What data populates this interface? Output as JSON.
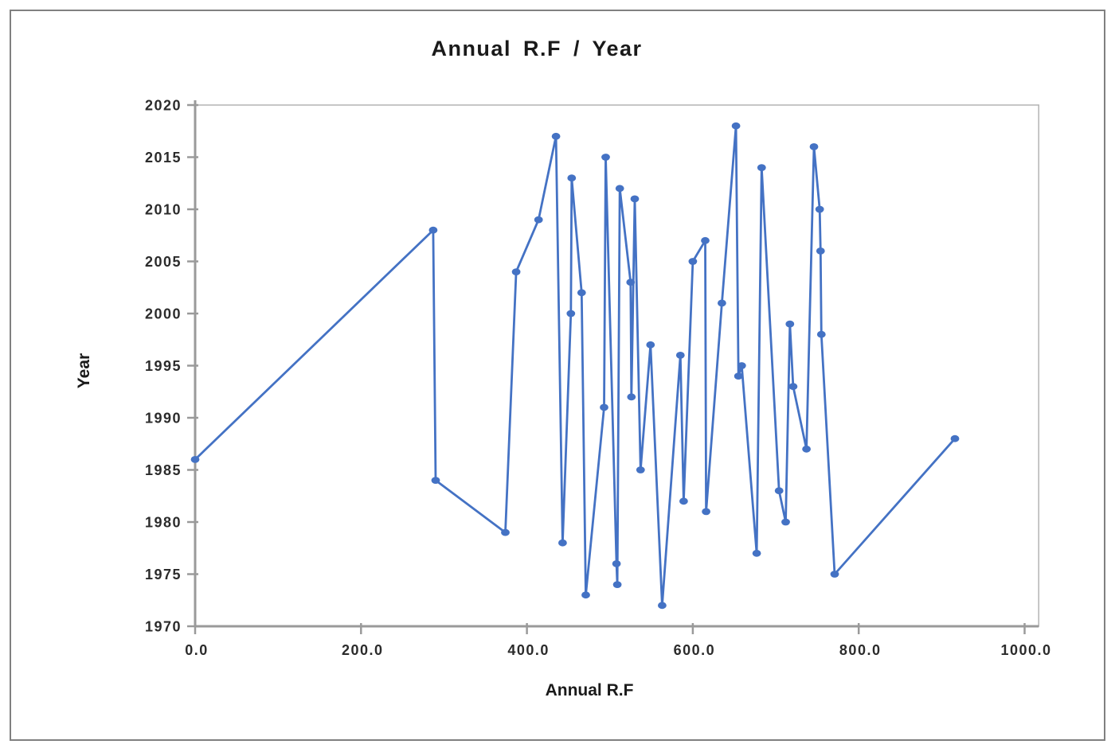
{
  "chart_data": {
    "type": "line",
    "title": "Annual R.F / Year",
    "xlabel": "Annual R.F",
    "ylabel": "Year",
    "x_tick_labels": [
      "0.0",
      "200.0",
      "400.0",
      "600.0",
      "800.0",
      "1000.0"
    ],
    "x_tick_values": [
      0,
      200,
      400,
      600,
      800,
      1000
    ],
    "y_tick_labels": [
      "1970",
      "1975",
      "1980",
      "1985",
      "1990",
      "1995",
      "2000",
      "2005",
      "2010",
      "2015",
      "2020"
    ],
    "y_tick_values": [
      1970,
      1975,
      1980,
      1985,
      1990,
      1995,
      2000,
      2005,
      2010,
      2015,
      2020
    ],
    "xlim": [
      0,
      1017
    ],
    "ylim": [
      1970,
      2020
    ],
    "grid": false,
    "legend": "none",
    "marker": "circle",
    "colors": {
      "series": "#4472C4",
      "axis": "#9a9a9a",
      "figure_border": "#808080",
      "text": "#1a1a1a"
    },
    "series": [
      {
        "name": "Annual R.F",
        "points": [
          [
            0,
            1986
          ],
          [
            287,
            2008
          ],
          [
            290,
            1984
          ],
          [
            374,
            1979
          ],
          [
            387,
            2004
          ],
          [
            414,
            2009
          ],
          [
            435,
            2017
          ],
          [
            443,
            1978
          ],
          [
            453,
            2000
          ],
          [
            454,
            2013
          ],
          [
            466,
            2002
          ],
          [
            471,
            1973
          ],
          [
            493,
            1991
          ],
          [
            495,
            2015
          ],
          [
            508,
            1976
          ],
          [
            509,
            1974
          ],
          [
            512,
            2012
          ],
          [
            525,
            2003
          ],
          [
            526,
            1992
          ],
          [
            530,
            2011
          ],
          [
            537,
            1985
          ],
          [
            549,
            1997
          ],
          [
            563,
            1972
          ],
          [
            585,
            1996
          ],
          [
            589,
            1982
          ],
          [
            600,
            2005
          ],
          [
            615,
            2007
          ],
          [
            616,
            1981
          ],
          [
            635,
            2001
          ],
          [
            652,
            2018
          ],
          [
            655,
            1994
          ],
          [
            659,
            1995
          ],
          [
            677,
            1977
          ],
          [
            683,
            2014
          ],
          [
            704,
            1983
          ],
          [
            712,
            1980
          ],
          [
            717,
            1999
          ],
          [
            721,
            1993
          ],
          [
            737,
            1987
          ],
          [
            746,
            2016
          ],
          [
            753,
            2010
          ],
          [
            754,
            2006
          ],
          [
            755,
            1998
          ],
          [
            771,
            1975
          ],
          [
            916,
            1988
          ]
        ]
      }
    ]
  }
}
